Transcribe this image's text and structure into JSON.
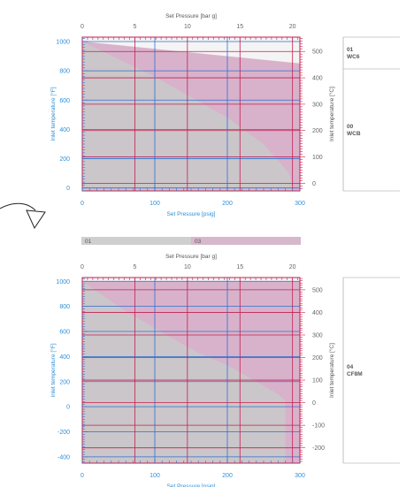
{
  "chart_data": [
    {
      "type": "area",
      "title": "",
      "top_axis": {
        "label": "Set Pressure [bar g]",
        "ticks": [
          0,
          5,
          10,
          15,
          20
        ],
        "range": [
          0,
          20.7
        ]
      },
      "bottom_axis": {
        "label": "Set Pressure [psig]",
        "ticks": [
          0,
          100,
          200,
          300
        ],
        "range": [
          0,
          300
        ]
      },
      "left_axis": {
        "label": "Inlet temperature [°F]",
        "ticks": [
          0,
          200,
          400,
          600,
          800,
          1000
        ],
        "range": [
          -20,
          1030
        ]
      },
      "right_axis": {
        "label": "Inlet temperature [°C]",
        "ticks": [
          0,
          100,
          200,
          300,
          400,
          500
        ],
        "range": [
          -28.9,
          554.4
        ]
      },
      "series": [
        {
          "id": "00",
          "color": "#c9c9c9",
          "x": [
            0,
            0,
            100,
            150,
            200,
            250,
            285,
            293,
            300
          ],
          "y": [
            -20,
            1000,
            760,
            620,
            480,
            300,
            100,
            -20,
            -20
          ]
        },
        {
          "id": "01",
          "color": "#d2a6c3",
          "x": [
            0,
            0,
            300,
            300
          ],
          "y": [
            -20,
            1000,
            850,
            -20
          ]
        }
      ],
      "materials": [
        {
          "code": "01",
          "name": "WC6"
        },
        {
          "code": "00",
          "name": "WCB"
        }
      ]
    },
    {
      "type": "area",
      "title": "",
      "top_axis": {
        "label": "Set Pressure [bar g]",
        "ticks": [
          0,
          5,
          10,
          15,
          20
        ],
        "range": [
          0,
          20.7
        ]
      },
      "bottom_axis": {
        "label": "Set Pressure [psig]",
        "ticks": [
          0,
          100,
          200,
          300
        ],
        "range": [
          0,
          300
        ]
      },
      "left_axis": {
        "label": "Inlet temperature [°F]",
        "ticks": [
          -400,
          -200,
          0,
          200,
          400,
          600,
          800,
          1000
        ],
        "range": [
          -450,
          1030
        ]
      },
      "right_axis": {
        "label": "Inlet temperature [°C]",
        "ticks": [
          -200,
          -100,
          0,
          100,
          200,
          300,
          400,
          500
        ],
        "range": [
          -267.8,
          554.4
        ]
      },
      "series": [
        {
          "id": "01",
          "color": "#c9c9c9",
          "x": [
            0,
            0,
            60,
            120,
            160,
            200,
            240,
            270,
            280,
            280
          ],
          "y": [
            -450,
            1000,
            760,
            560,
            430,
            330,
            200,
            100,
            50,
            -450
          ]
        },
        {
          "id": "03",
          "color": "#d2a6c3",
          "x": [
            0,
            0,
            300,
            300
          ],
          "y": [
            -450,
            1000,
            1000,
            -450
          ]
        }
      ],
      "materials": [
        {
          "code": "04",
          "name": "CF8M"
        }
      ]
    }
  ],
  "legend": [
    {
      "code": "01",
      "color": "#cfcfcf"
    },
    {
      "code": "03",
      "color": "#d7b7cc"
    }
  ]
}
